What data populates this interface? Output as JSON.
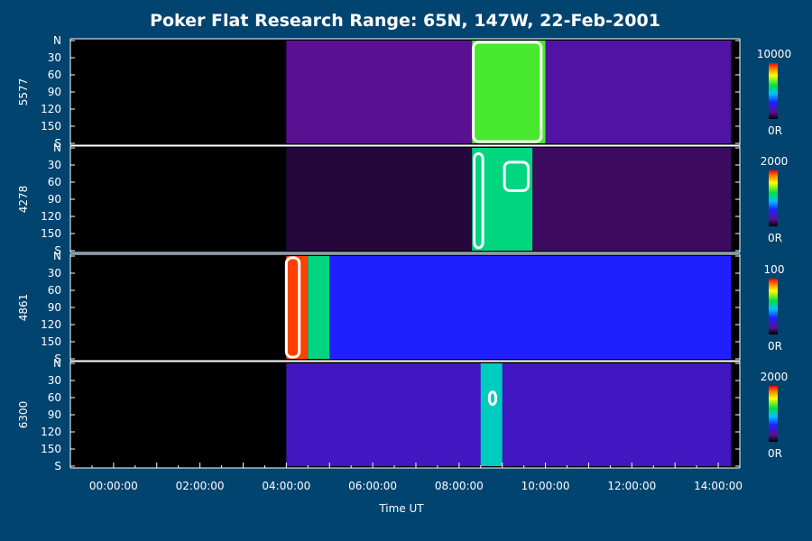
{
  "chart_data": {
    "type": "heatmap",
    "title": "Poker Flat Research Range: 65N, 147W, 22-Feb-2001",
    "xlabel": "Time UT",
    "x_tick_labels": [
      "00:00:00",
      "02:00:00",
      "04:00:00",
      "06:00:00",
      "08:00:00",
      "10:00:00",
      "12:00:00",
      "14:00:00"
    ],
    "x_tick_hours": [
      0,
      2,
      4,
      6,
      8,
      10,
      12,
      14
    ],
    "xlim_hours": [
      -1,
      14.5
    ],
    "y_tick_labels": [
      "N",
      "30",
      "60",
      "90",
      "120",
      "150",
      "S"
    ],
    "y_tick_values": [
      0,
      30,
      60,
      90,
      120,
      150,
      180
    ],
    "ylim": [
      0,
      180
    ],
    "data_start_hour": 4.0,
    "panels": [
      {
        "label": "5577",
        "colorbar_max": "10000",
        "colorbar_min": "0R",
        "regions": [
          {
            "t0": 4.0,
            "t1": 8.3,
            "y0": 0,
            "y1": 180,
            "level": 0.12
          },
          {
            "t0": 8.3,
            "t1": 10.0,
            "y0": 0,
            "y1": 180,
            "level": 0.65
          },
          {
            "t0": 10.0,
            "t1": 14.3,
            "y0": 0,
            "y1": 180,
            "level": 0.15
          }
        ],
        "saturated": [
          {
            "t0": 8.33,
            "t1": 9.9,
            "y0": 3,
            "y1": 177
          }
        ]
      },
      {
        "label": "4278",
        "colorbar_max": "2000",
        "colorbar_min": "0R",
        "regions": [
          {
            "t0": 4.0,
            "t1": 8.3,
            "y0": 0,
            "y1": 180,
            "level": 0.05
          },
          {
            "t0": 8.3,
            "t1": 9.7,
            "y0": 0,
            "y1": 180,
            "level": 0.55
          },
          {
            "t0": 9.7,
            "t1": 14.3,
            "y0": 0,
            "y1": 180,
            "level": 0.08
          }
        ],
        "saturated": [
          {
            "t0": 8.35,
            "t1": 8.55,
            "y0": 10,
            "y1": 175
          },
          {
            "t0": 9.05,
            "t1": 9.6,
            "y0": 25,
            "y1": 75
          }
        ]
      },
      {
        "label": "4861",
        "colorbar_max": "100",
        "colorbar_min": "0R",
        "regions": [
          {
            "t0": 4.0,
            "t1": 4.5,
            "y0": 0,
            "y1": 180,
            "level": 0.95
          },
          {
            "t0": 4.5,
            "t1": 5.0,
            "y0": 0,
            "y1": 180,
            "level": 0.55
          },
          {
            "t0": 5.0,
            "t1": 14.3,
            "y0": 0,
            "y1": 180,
            "level": 0.3
          }
        ],
        "saturated": [
          {
            "t0": 4.0,
            "t1": 4.3,
            "y0": 3,
            "y1": 177
          }
        ]
      },
      {
        "label": "6300",
        "colorbar_max": "2000",
        "colorbar_min": "0R",
        "regions": [
          {
            "t0": 4.0,
            "t1": 14.3,
            "y0": 0,
            "y1": 180,
            "level": 0.2
          },
          {
            "t0": 8.5,
            "t1": 9.0,
            "y0": 0,
            "y1": 180,
            "level": 0.5
          }
        ],
        "saturated": [
          {
            "t0": 8.7,
            "t1": 8.85,
            "y0": 50,
            "y1": 72
          }
        ]
      }
    ]
  }
}
